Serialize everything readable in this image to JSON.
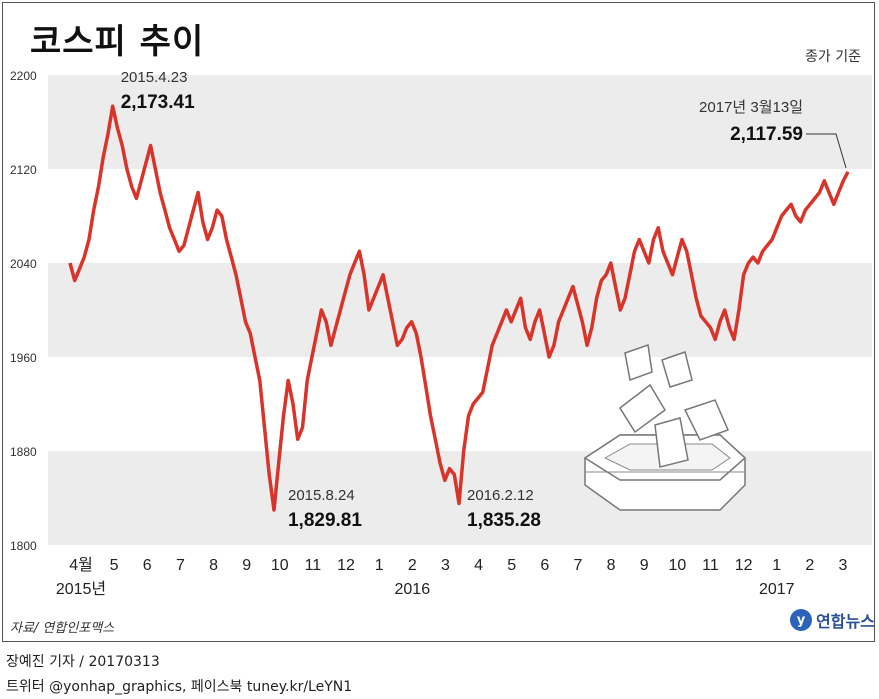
{
  "title": "코스피 추이",
  "unit_note": "종가 기준",
  "source": "자료/ 연합인포맥스",
  "logo_text": "연합뉴스",
  "credit": "장예진 기자 / 20170313",
  "social": "트위터 @yonhap_graphics, 페이스북 tuney.kr/LeYN1",
  "colors": {
    "line": "#d8342a",
    "band": "#ececec",
    "text": "#222222"
  },
  "chart_data": {
    "type": "line",
    "title": "코스피 추이",
    "ylim": [
      1800,
      2200
    ],
    "yticks": [
      "2200",
      "2120",
      "2040",
      "1960",
      "1880",
      "1800"
    ],
    "ytick_values": [
      2200,
      2120,
      2040,
      1960,
      1880,
      1800
    ],
    "month_labels": [
      "4월",
      "5",
      "6",
      "7",
      "8",
      "9",
      "10",
      "11",
      "12",
      "1",
      "2",
      "3",
      "4",
      "5",
      "6",
      "7",
      "8",
      "9",
      "10",
      "11",
      "12",
      "1",
      "2",
      "3"
    ],
    "year_labels": [
      "2015년",
      "2016",
      "2017"
    ],
    "series": [
      {
        "values": [
          2040,
          2025,
          2035,
          2045,
          2060,
          2085,
          2105,
          2130,
          2150,
          2173.41,
          2155,
          2140,
          2120,
          2105,
          2095,
          2110,
          2125,
          2140,
          2120,
          2100,
          2085,
          2070,
          2060,
          2050,
          2055,
          2070,
          2085,
          2100,
          2075,
          2060,
          2070,
          2085,
          2080,
          2060,
          2045,
          2030,
          2010,
          1990,
          1980,
          1960,
          1940,
          1900,
          1860,
          1829.81,
          1870,
          1910,
          1940,
          1920,
          1890,
          1900,
          1940,
          1960,
          1980,
          2000,
          1990,
          1970,
          1985,
          2000,
          2015,
          2030,
          2040,
          2050,
          2030,
          2000,
          2010,
          2020,
          2030,
          2010,
          1990,
          1970,
          1975,
          1985,
          1990,
          1980,
          1960,
          1935,
          1910,
          1890,
          1870,
          1855,
          1865,
          1860,
          1835.28,
          1880,
          1910,
          1920,
          1925,
          1930,
          1950,
          1970,
          1980,
          1990,
          2000,
          1990,
          2000,
          2010,
          1985,
          1975,
          1990,
          2000,
          1980,
          1960,
          1970,
          1990,
          2000,
          2010,
          2020,
          2005,
          1990,
          1970,
          1985,
          2010,
          2025,
          2030,
          2040,
          2020,
          2000,
          2010,
          2030,
          2050,
          2060,
          2050,
          2040,
          2060,
          2070,
          2050,
          2040,
          2030,
          2045,
          2060,
          2050,
          2030,
          2010,
          1995,
          1990,
          1985,
          1975,
          1990,
          2000,
          1985,
          1975,
          2000,
          2030,
          2040,
          2045,
          2040,
          2050,
          2055,
          2060,
          2070,
          2080,
          2085,
          2090,
          2080,
          2075,
          2085,
          2090,
          2095,
          2100,
          2110,
          2100,
          2090,
          2100,
          2110,
          2117.59
        ],
        "peaks": [
          {
            "label_date": "2015.4.23",
            "label_value": "2,173.41"
          },
          {
            "label_date": "2015.8.24",
            "label_value": "1,829.81"
          },
          {
            "label_date": "2016.2.12",
            "label_value": "1,835.28"
          },
          {
            "label_date": "2017년 3월13일",
            "label_value": "2,117.59"
          }
        ]
      }
    ]
  }
}
